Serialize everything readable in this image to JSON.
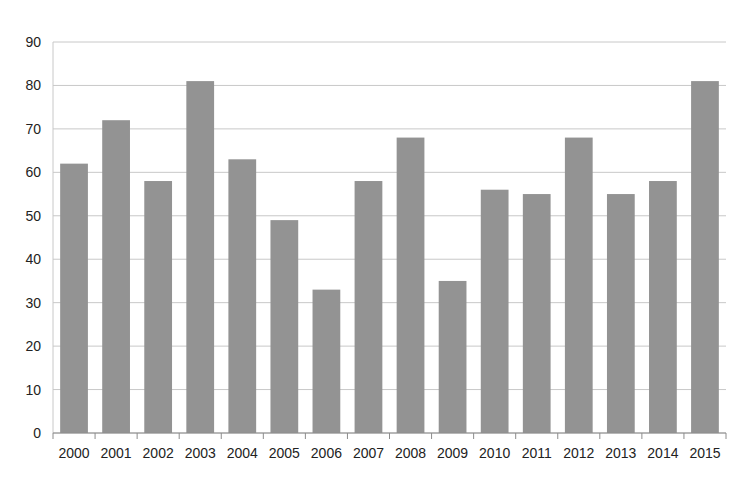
{
  "chart_data": {
    "type": "bar",
    "categories": [
      "2000",
      "2001",
      "2002",
      "2003",
      "2004",
      "2005",
      "2006",
      "2007",
      "2008",
      "2009",
      "2010",
      "2011",
      "2012",
      "2013",
      "2014",
      "2015"
    ],
    "values": [
      62,
      72,
      58,
      81,
      63,
      49,
      33,
      58,
      68,
      35,
      56,
      55,
      68,
      55,
      58,
      81
    ],
    "color": "#939393",
    "ylim": [
      0,
      90
    ],
    "yticks": [
      0,
      10,
      20,
      30,
      40,
      50,
      60,
      70,
      80,
      90
    ],
    "grid": true
  }
}
